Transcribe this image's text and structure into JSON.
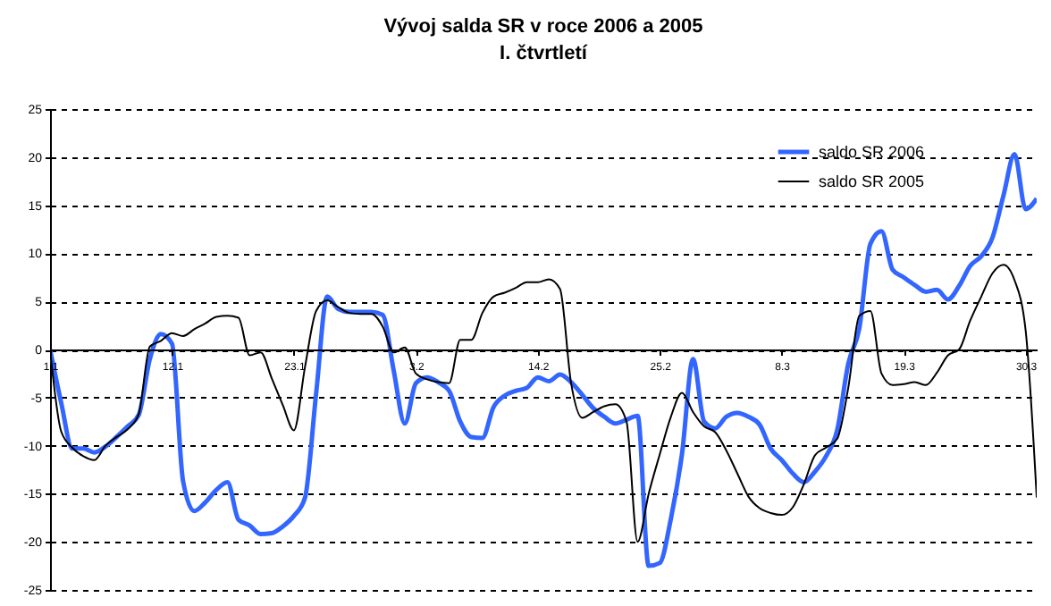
{
  "chart_data": {
    "type": "line",
    "title": "Vývoj salda SR v roce 2006 a 2005",
    "subtitle": "I. čtvrtletí",
    "categories": [
      "1.1",
      null,
      null,
      null,
      null,
      null,
      null,
      null,
      null,
      null,
      null,
      "12.1",
      null,
      null,
      null,
      null,
      null,
      null,
      null,
      null,
      null,
      null,
      "23.1",
      null,
      null,
      null,
      null,
      null,
      null,
      null,
      null,
      null,
      null,
      "3.2",
      null,
      null,
      null,
      null,
      null,
      null,
      null,
      null,
      null,
      null,
      "14.2",
      null,
      null,
      null,
      null,
      null,
      null,
      null,
      null,
      null,
      null,
      "25.2",
      null,
      null,
      null,
      null,
      null,
      null,
      null,
      null,
      null,
      null,
      "8.3",
      null,
      null,
      null,
      null,
      null,
      null,
      null,
      null,
      null,
      null,
      "19.3",
      null,
      null,
      null,
      null,
      null,
      null,
      null,
      null,
      null,
      null,
      "30.3",
      null
    ],
    "ylim": [
      -25,
      25
    ],
    "yticks": [
      -25,
      -20,
      -15,
      -10,
      -5,
      0,
      5,
      10,
      15,
      20,
      25
    ],
    "grid": "y",
    "legend": "top right",
    "marker": "none",
    "series": [
      {
        "name": "saldo SR 2006",
        "color": "#3366ff",
        "values": [
          0,
          -5.5,
          -10.3,
          -10.3,
          -10.7,
          -10.1,
          -9.1,
          -8.0,
          -6.8,
          -1.0,
          1.6,
          0.6,
          -13.7,
          -16.8,
          -15.9,
          -14.6,
          -13.8,
          -17.7,
          -18.3,
          -19.2,
          -19.1,
          -18.4,
          -17.3,
          -15.4,
          -4.6,
          5.5,
          4.2,
          3.9,
          3.9,
          3.9,
          3.6,
          -2.2,
          -7.7,
          -3.5,
          -2.9,
          -3.4,
          -4.3,
          -7.5,
          -9.1,
          -9.2,
          -6.0,
          -4.8,
          -4.3,
          -4.0,
          -2.9,
          -3.3,
          -2.6,
          -3.4,
          -4.7,
          -6.1,
          -7.0,
          -7.7,
          -7.3,
          -6.9,
          -22.5,
          -22.2,
          -17.6,
          -10.9,
          -1.0,
          -7.5,
          -8.2,
          -7.0,
          -6.6,
          -7.0,
          -7.8,
          -10.3,
          -11.5,
          -12.9,
          -13.8,
          -12.7,
          -11.1,
          -8.4,
          -1.5,
          2.2,
          11.0,
          12.3,
          8.3,
          7.5,
          6.7,
          6.0,
          6.2,
          5.2,
          6.6,
          8.7,
          9.7,
          11.6,
          16.0,
          20.3,
          14.6,
          15.7
        ]
      },
      {
        "name": "saldo SR 2005",
        "color": "#000000",
        "values": [
          0,
          -8.5,
          -10.2,
          -11.1,
          -11.5,
          -10.0,
          -9.1,
          -8.3,
          -6.7,
          0.3,
          0.9,
          1.7,
          1.4,
          2.1,
          2.7,
          3.4,
          3.5,
          3.3,
          -0.6,
          -0.3,
          -3.0,
          -5.8,
          -8.4,
          -1.8,
          4.0,
          5.1,
          4.4,
          3.8,
          3.7,
          3.7,
          2.4,
          -0.3,
          0.2,
          -2.5,
          -3.1,
          -3.4,
          -3.5,
          1.0,
          1.0,
          3.8,
          5.5,
          5.9,
          6.4,
          7.0,
          7.0,
          7.3,
          6.3,
          -3.5,
          -7.1,
          -6.5,
          -5.9,
          -5.7,
          -7.5,
          -20.0,
          -15.0,
          -10.9,
          -7.0,
          -4.5,
          -6.5,
          -8.0,
          -8.6,
          -10.5,
          -12.9,
          -15.3,
          -16.5,
          -17.0,
          -17.2,
          -16.4,
          -14.0,
          -11.0,
          -10.2,
          -9.3,
          -4.0,
          3.5,
          4.0,
          -2.5,
          -3.7,
          -3.6,
          -3.4,
          -3.7,
          -2.4,
          -0.6,
          0,
          3.0,
          5.5,
          7.9,
          8.8,
          7.2,
          2.0,
          -15.4
        ]
      }
    ]
  }
}
